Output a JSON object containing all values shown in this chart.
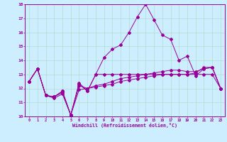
{
  "xlabel": "Windchill (Refroidissement éolien,°C)",
  "bg_color": "#cceeff",
  "grid_color": "#b0ddd0",
  "line_color": "#990099",
  "xlim": [
    -0.5,
    23.5
  ],
  "ylim": [
    10,
    18
  ],
  "yticks": [
    10,
    11,
    12,
    13,
    14,
    15,
    16,
    17,
    18
  ],
  "xticks": [
    0,
    1,
    2,
    3,
    4,
    5,
    6,
    7,
    8,
    9,
    10,
    11,
    12,
    13,
    14,
    15,
    16,
    17,
    18,
    19,
    20,
    21,
    22,
    23
  ],
  "series": [
    [
      12.5,
      13.4,
      11.5,
      11.4,
      11.7,
      10.1,
      12.3,
      11.8,
      13.0,
      13.0,
      13.0,
      13.0,
      13.0,
      13.0,
      13.0,
      13.0,
      13.0,
      13.0,
      13.0,
      13.0,
      13.0,
      13.0,
      13.0,
      12.0
    ],
    [
      12.5,
      13.4,
      11.5,
      11.4,
      11.8,
      10.1,
      11.9,
      12.0,
      12.1,
      12.2,
      12.3,
      12.5,
      12.6,
      12.7,
      12.8,
      12.9,
      13.0,
      13.0,
      13.0,
      13.0,
      13.1,
      13.5,
      13.5,
      12.0
    ],
    [
      12.5,
      13.4,
      11.5,
      11.4,
      11.8,
      10.1,
      12.2,
      12.0,
      12.2,
      12.3,
      12.5,
      12.7,
      12.8,
      12.9,
      13.0,
      13.1,
      13.2,
      13.3,
      13.3,
      13.2,
      13.2,
      13.4,
      13.5,
      12.0
    ],
    [
      12.5,
      13.4,
      11.5,
      11.3,
      11.6,
      10.1,
      12.4,
      11.8,
      13.0,
      14.2,
      14.8,
      15.1,
      16.0,
      17.1,
      18.0,
      16.9,
      15.8,
      15.5,
      14.0,
      14.3,
      12.9,
      13.4,
      13.5,
      12.0
    ]
  ]
}
